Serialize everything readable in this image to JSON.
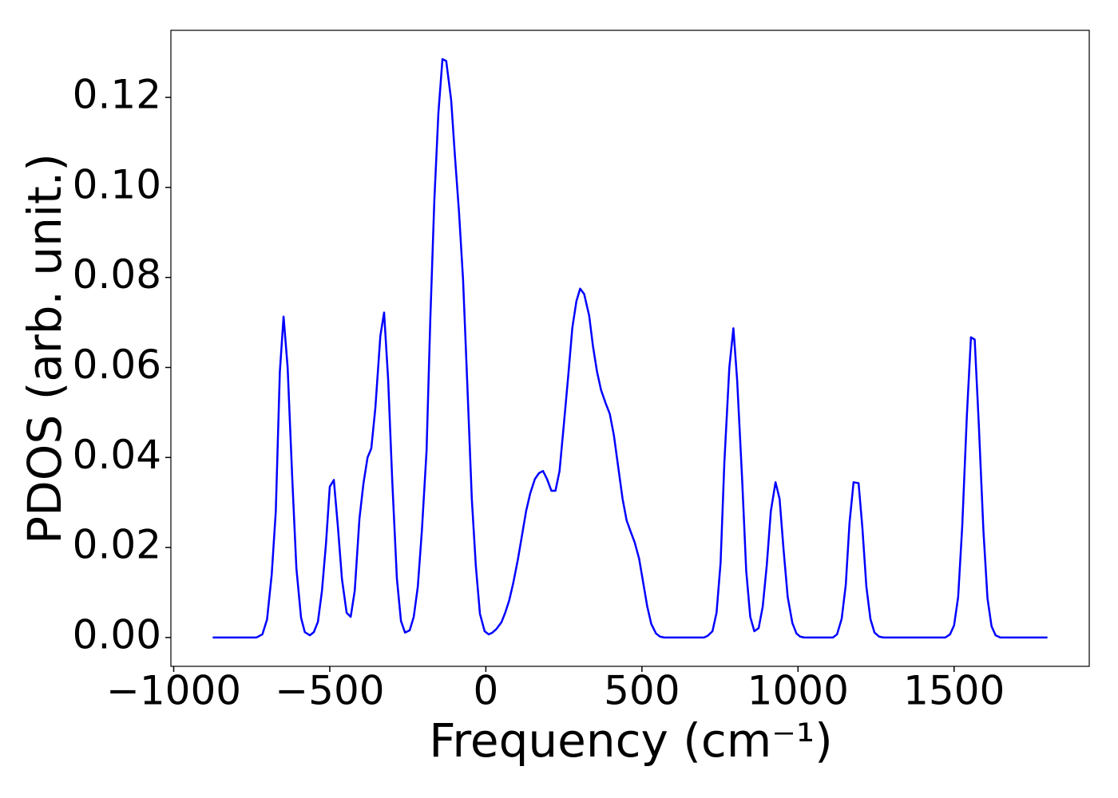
{
  "chart_data": {
    "type": "line",
    "xlabel": "Frequency (cm⁻¹)",
    "ylabel": "PDOS (arb. unit.)",
    "x": [
      -875,
      -735,
      -716,
      -701,
      -686,
      -673,
      -660,
      -648,
      -635,
      -620,
      -607,
      -592,
      -580,
      -564,
      -551,
      -538,
      -525,
      -512,
      -500,
      -487,
      -474,
      -461,
      -446,
      -433,
      -420,
      -405,
      -392,
      -379,
      -367,
      -354,
      -338,
      -326,
      -313,
      -300,
      -285,
      -272,
      -259,
      -244,
      -231,
      -218,
      -205,
      -190,
      -178,
      -165,
      -152,
      -139,
      -127,
      -111,
      -99,
      -86,
      -73,
      -58,
      -45,
      -32,
      -19,
      -4,
      9,
      21,
      34,
      50,
      62,
      75,
      88,
      103,
      116,
      129,
      142,
      157,
      170,
      183,
      196,
      210,
      223,
      236,
      249,
      264,
      277,
      290,
      302,
      315,
      331,
      343,
      356,
      369,
      384,
      397,
      410,
      423,
      438,
      451,
      464,
      477,
      491,
      504,
      517,
      530,
      545,
      558,
      571,
      699,
      711,
      726,
      739,
      752,
      764,
      780,
      793,
      805,
      821,
      834,
      847,
      860,
      874,
      887,
      900,
      913,
      928,
      941,
      954,
      967,
      982,
      995,
      1007,
      1020,
      1112,
      1125,
      1140,
      1153,
      1165,
      1178,
      1194,
      1206,
      1219,
      1232,
      1245,
      1260,
      1273,
      1472,
      1487,
      1500,
      1513,
      1526,
      1541,
      1554,
      1566,
      1579,
      1594,
      1607,
      1620,
      1633,
      1648,
      1799
    ],
    "series": [
      {
        "color": "#0000ff",
        "values": [
          0,
          0,
          0.0007,
          0.004,
          0.014,
          0.028,
          0.059,
          0.0713,
          0.06,
          0.035,
          0.0154,
          0.0044,
          0.0012,
          0.0005,
          0.0012,
          0.0035,
          0.0104,
          0.021,
          0.0335,
          0.035,
          0.0246,
          0.013,
          0.0055,
          0.0046,
          0.0104,
          0.0264,
          0.0343,
          0.04,
          0.042,
          0.051,
          0.067,
          0.0722,
          0.0573,
          0.035,
          0.0131,
          0.0037,
          0.0011,
          0.0016,
          0.0046,
          0.0113,
          0.0237,
          0.0414,
          0.0706,
          0.0972,
          0.1166,
          0.1285,
          0.1281,
          0.1193,
          0.1069,
          0.0945,
          0.0795,
          0.0538,
          0.0308,
          0.0158,
          0.0053,
          0.0014,
          0.0007,
          0.0011,
          0.0019,
          0.0034,
          0.0055,
          0.0083,
          0.0122,
          0.0175,
          0.0228,
          0.0281,
          0.032,
          0.0352,
          0.0365,
          0.037,
          0.0352,
          0.0326,
          0.0326,
          0.037,
          0.0467,
          0.0582,
          0.0688,
          0.0747,
          0.0775,
          0.0763,
          0.0715,
          0.0648,
          0.0591,
          0.055,
          0.052,
          0.0497,
          0.045,
          0.0384,
          0.0308,
          0.026,
          0.0235,
          0.0211,
          0.0175,
          0.0122,
          0.0069,
          0.003,
          0.0009,
          0.0002,
          0,
          0,
          0.0004,
          0.0014,
          0.0055,
          0.0166,
          0.0388,
          0.06,
          0.0687,
          0.0572,
          0.0352,
          0.0149,
          0.0046,
          0.0014,
          0.0021,
          0.0069,
          0.0161,
          0.0281,
          0.0345,
          0.0308,
          0.0193,
          0.009,
          0.0032,
          0.0009,
          0.0002,
          0,
          0,
          0.0007,
          0.0042,
          0.0117,
          0.0255,
          0.0345,
          0.0343,
          0.0246,
          0.0113,
          0.0041,
          0.0011,
          0.0002,
          0,
          0,
          0.0007,
          0.0027,
          0.009,
          0.0246,
          0.0494,
          0.0667,
          0.0662,
          0.0476,
          0.0237,
          0.0087,
          0.0025,
          0.0005,
          0,
          0
        ]
      }
    ],
    "xlim": [
      -1009,
      1933
    ],
    "ylim": [
      -0.0064,
      0.1349
    ],
    "xticks": [
      {
        "value": -1000,
        "label": "−1000"
      },
      {
        "value": -500,
        "label": "−500"
      },
      0,
      500,
      1000,
      1500
    ],
    "yticks": [
      {
        "value": 0,
        "label": "0.00"
      },
      {
        "value": 0.02,
        "label": "0.02"
      },
      {
        "value": 0.04,
        "label": "0.04"
      },
      {
        "value": 0.06,
        "label": "0.06"
      },
      {
        "value": 0.08,
        "label": "0.08"
      },
      {
        "value": 0.1,
        "label": "0.10"
      },
      {
        "value": 0.12,
        "label": "0.12"
      }
    ]
  }
}
